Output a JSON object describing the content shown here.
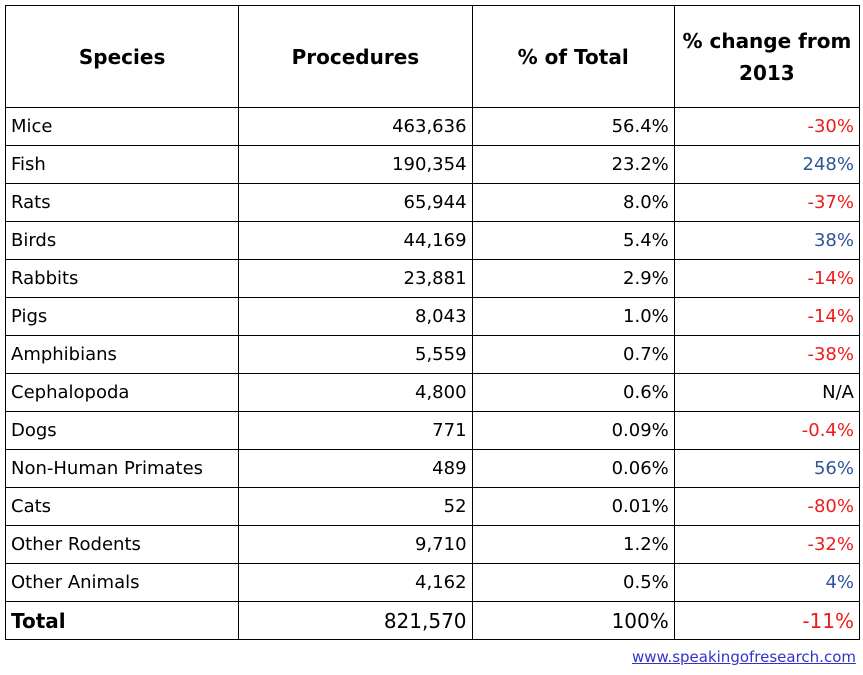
{
  "headers": [
    "Species",
    "Procedures",
    "% of Total",
    "% change from 2013"
  ],
  "rows": [
    [
      "Mice",
      "463,636",
      "56.4%",
      "-30%"
    ],
    [
      "Fish",
      "190,354",
      "23.2%",
      "248%"
    ],
    [
      "Rats",
      "65,944",
      "8.0%",
      "-37%"
    ],
    [
      "Birds",
      "44,169",
      "5.4%",
      "38%"
    ],
    [
      "Rabbits",
      "23,881",
      "2.9%",
      "-14%"
    ],
    [
      "Pigs",
      "8,043",
      "1.0%",
      "-14%"
    ],
    [
      "Amphibians",
      "5,559",
      "0.7%",
      "-38%"
    ],
    [
      "Cephalopoda",
      "4,800",
      "0.6%",
      "N/A"
    ],
    [
      "Dogs",
      "771",
      "0.09%",
      "-0.4%"
    ],
    [
      "Non-Human Primates",
      "489",
      "0.06%",
      "56%"
    ],
    [
      "Cats",
      "52",
      "0.01%",
      "-80%"
    ],
    [
      "Other Rodents",
      "9,710",
      "1.2%",
      "-32%"
    ],
    [
      "Other Animals",
      "4,162",
      "0.5%",
      "4%"
    ]
  ],
  "total": [
    "Total",
    "821,570",
    "100%",
    "-11%"
  ],
  "source_link": "www.speakingofresearch.com",
  "colors": {
    "negative": "#ee1c1c",
    "positive": "#2f5597",
    "link": "#3333cc"
  }
}
